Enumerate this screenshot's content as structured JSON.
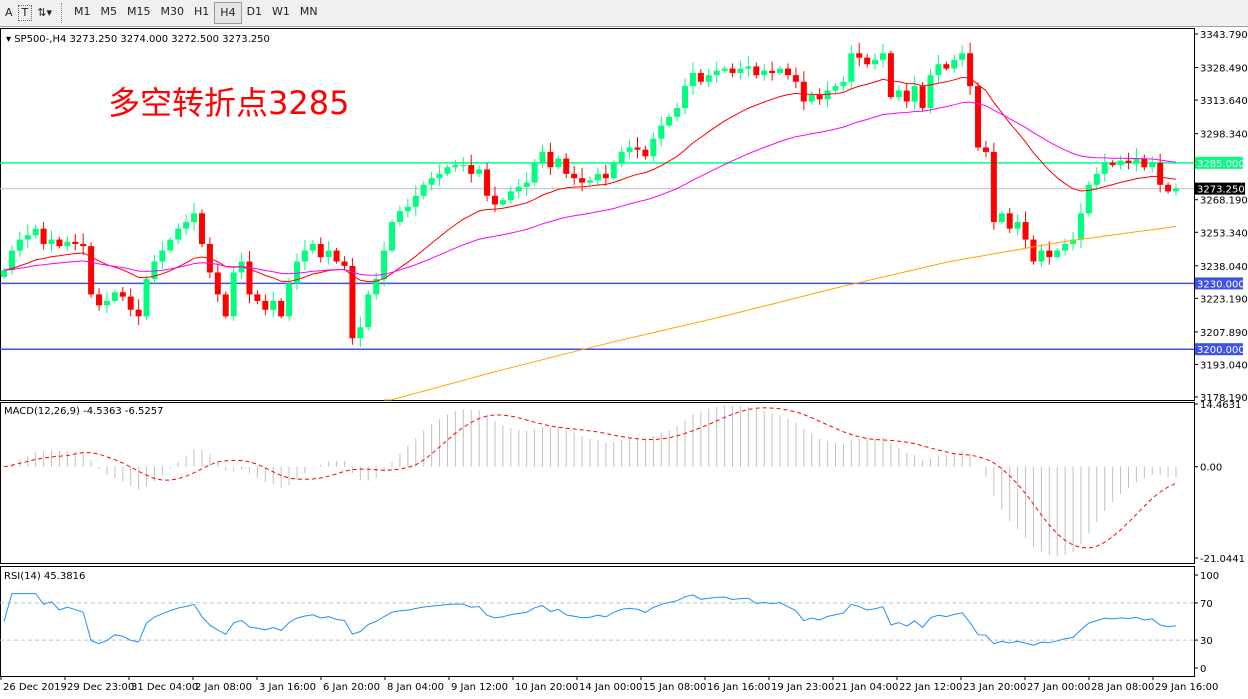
{
  "toolbar": {
    "tools": [
      {
        "icon": "text-a-icon",
        "label": "A"
      },
      {
        "icon": "text-label-icon",
        "label": "T"
      },
      {
        "icon": "arrows-icon",
        "label": "⇅▾"
      }
    ],
    "timeframes": [
      "M1",
      "M5",
      "M15",
      "M30",
      "H1",
      "H4",
      "D1",
      "W1",
      "MN"
    ],
    "active_timeframe": "H4"
  },
  "annotation": "多空转折点3285",
  "chart_data": {
    "type": "candlestick",
    "title": "SP500-,H4  3273.250 3274.000 3272.500 3273.250",
    "symbol": "SP500-",
    "timeframe": "H4",
    "last_ohlc": {
      "open": 3273.25,
      "high": 3274.0,
      "low": 3272.5,
      "close": 3273.25
    },
    "ylim": [
      3178.19,
      3343.79
    ],
    "y_ticks": [
      "3343.790",
      "3328.490",
      "3313.640",
      "3298.340",
      "3268.190",
      "3253.340",
      "3238.040",
      "3223.190",
      "3207.890",
      "3193.040",
      "3178.190"
    ],
    "x_ticks": [
      "26 Dec 2019",
      "29 Dec 23:00",
      "31 Dec 04:00",
      "2 Jan 08:00",
      "3 Jan 16:00",
      "6 Jan 20:00",
      "8 Jan 04:00",
      "9 Jan 12:00",
      "10 Jan 20:00",
      "14 Jan 00:00",
      "15 Jan 08:00",
      "16 Jan 16:00",
      "19 Jan 23:00",
      "21 Jan 04:00",
      "22 Jan 12:00",
      "23 Jan 20:00",
      "27 Jan 00:00",
      "28 Jan 08:00",
      "29 Jan 16:00"
    ],
    "closes": [
      3236,
      3245,
      3250,
      3252,
      3255,
      3248,
      3250,
      3247,
      3249,
      3248,
      3247,
      3225,
      3220,
      3222,
      3226,
      3224,
      3218,
      3215,
      3232,
      3240,
      3245,
      3250,
      3255,
      3258,
      3262,
      3248,
      3235,
      3225,
      3215,
      3235,
      3240,
      3225,
      3222,
      3218,
      3222,
      3215,
      3230,
      3240,
      3245,
      3248,
      3242,
      3245,
      3240,
      3238,
      3205,
      3210,
      3225,
      3232,
      3245,
      3258,
      3263,
      3265,
      3270,
      3275,
      3278,
      3280,
      3283,
      3284,
      3284,
      3280,
      3282,
      3270,
      3266,
      3268,
      3272,
      3274,
      3276,
      3285,
      3290,
      3283,
      3287,
      3280,
      3278,
      3276,
      3277,
      3280,
      3278,
      3285,
      3290,
      3292,
      3291,
      3288,
      3296,
      3302,
      3306,
      3310,
      3320,
      3326,
      3322,
      3325,
      3327,
      3328,
      3326,
      3328,
      3329,
      3325,
      3327,
      3326,
      3328,
      3325,
      3322,
      3313,
      3316,
      3314,
      3318,
      3320,
      3322,
      3335,
      3333,
      3330,
      3332,
      3335,
      3315,
      3318,
      3313,
      3320,
      3310,
      3325,
      3330,
      3328,
      3332,
      3335,
      3320,
      3292,
      3290,
      3258,
      3262,
      3255,
      3258,
      3250,
      3240,
      3245,
      3242,
      3245,
      3248,
      3250,
      3262,
      3275,
      3280,
      3285,
      3284,
      3286,
      3285,
      3287,
      3283,
      3285,
      3275,
      3272,
      3273.25
    ],
    "ma_slow": {
      "color": "#ffa500",
      "start_index": 48,
      "values": [
        3176,
        3190,
        3203,
        3215,
        3228,
        3240,
        3249,
        3256
      ]
    },
    "ma_fast_color": "#ff0000",
    "ma_mid_color": "#ff00ff",
    "bull_color": "#00ff7f",
    "bear_color": "#ff0000",
    "levels": [
      {
        "value": 3285.0,
        "label": "3285.000",
        "color": "#00ff7f"
      },
      {
        "value": 3230.0,
        "label": "3230.000",
        "color": "#3f51e6"
      },
      {
        "value": 3200.0,
        "label": "3200.000",
        "color": "#3f51e6"
      }
    ],
    "current_price": {
      "value": 3273.25,
      "label": "3273.250"
    },
    "macd": {
      "label": "MACD(12,26,9) -4.5363 -6.5257",
      "ylim": [
        -21.0441,
        14.4631
      ],
      "ticks": [
        "14.4631",
        "0.00",
        "-21.0441"
      ],
      "signal_color": "#ff0000",
      "hist_color": "#c0c0c0"
    },
    "rsi": {
      "label": "RSI(14) 45.3816",
      "ylim": [
        0,
        100
      ],
      "ticks": [
        "100",
        "70",
        "30",
        "0"
      ],
      "levels": [
        70,
        30
      ],
      "color": "#1e90ff"
    }
  }
}
